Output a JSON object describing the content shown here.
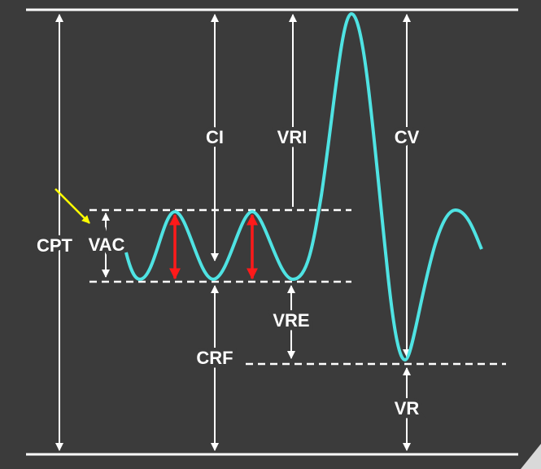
{
  "labels": {
    "cpt": "CPT",
    "vac": "VAC",
    "ci": "CI",
    "vri": "VRI",
    "cv": "CV",
    "vre": "VRE",
    "crf": "CRF",
    "vr": "VR"
  }
}
